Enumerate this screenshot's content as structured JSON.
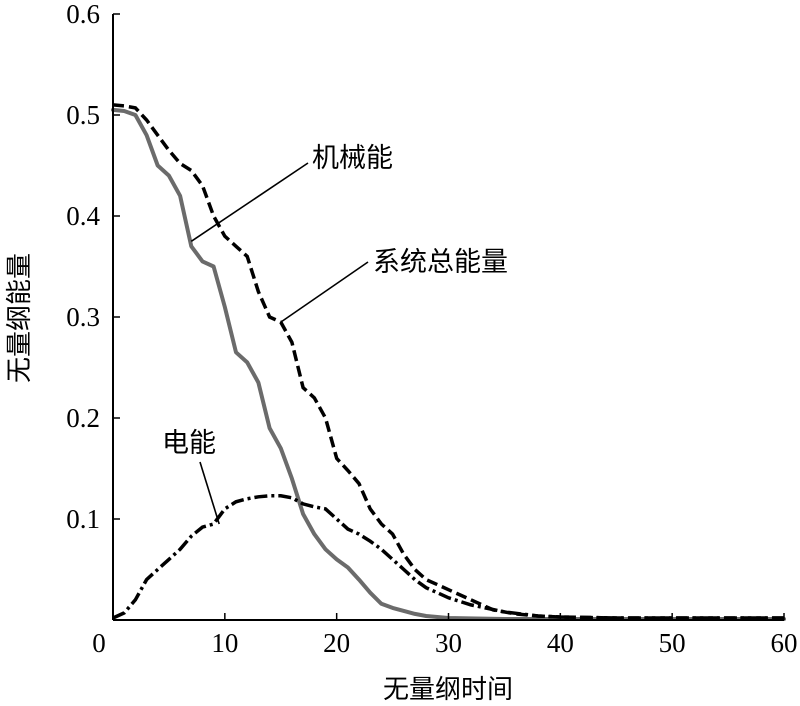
{
  "chart_data": {
    "type": "line",
    "xlabel": "无量纲时间",
    "ylabel": "无量纲能量",
    "xlim": [
      0,
      60
    ],
    "ylim": [
      0,
      0.6
    ],
    "x_ticks": [
      "0",
      "10",
      "20",
      "30",
      "40",
      "50",
      "60"
    ],
    "y_ticks": [
      "0.1",
      "0.2",
      "0.3",
      "0.4",
      "0.5",
      "0.6"
    ],
    "grid": false,
    "series": [
      {
        "name": "机械能",
        "style": "solid-gray",
        "color": "#6b6b6b",
        "x": [
          0,
          1,
          2,
          3,
          4,
          5,
          6,
          7,
          8,
          9,
          10,
          11,
          12,
          13,
          14,
          15,
          16,
          17,
          18,
          19,
          20,
          21,
          22,
          23,
          24,
          25,
          26,
          27,
          28,
          30,
          35,
          40,
          50,
          60
        ],
        "y": [
          0.505,
          0.504,
          0.5,
          0.48,
          0.45,
          0.44,
          0.42,
          0.37,
          0.355,
          0.35,
          0.31,
          0.265,
          0.255,
          0.235,
          0.19,
          0.17,
          0.14,
          0.105,
          0.085,
          0.07,
          0.06,
          0.052,
          0.04,
          0.027,
          0.016,
          0.012,
          0.009,
          0.006,
          0.004,
          0.002,
          0.001,
          0.001,
          0.001,
          0.001
        ]
      },
      {
        "name": "系统总能量",
        "style": "dashed",
        "color": "#000000",
        "x": [
          0,
          1,
          2,
          3,
          4,
          5,
          6,
          7,
          8,
          9,
          10,
          11,
          12,
          13,
          14,
          15,
          16,
          17,
          18,
          19,
          20,
          21,
          22,
          23,
          24,
          25,
          26,
          27,
          28,
          29,
          30,
          32,
          34,
          36,
          38,
          40,
          45,
          50,
          55,
          60
        ],
        "y": [
          0.51,
          0.509,
          0.507,
          0.495,
          0.48,
          0.465,
          0.452,
          0.445,
          0.43,
          0.4,
          0.38,
          0.37,
          0.36,
          0.325,
          0.3,
          0.295,
          0.275,
          0.23,
          0.22,
          0.2,
          0.16,
          0.148,
          0.135,
          0.11,
          0.095,
          0.085,
          0.065,
          0.05,
          0.04,
          0.035,
          0.03,
          0.02,
          0.01,
          0.006,
          0.004,
          0.003,
          0.002,
          0.002,
          0.002,
          0.002
        ]
      },
      {
        "name": "电能",
        "style": "dash-dot",
        "color": "#000000",
        "x": [
          0,
          1,
          2,
          3,
          4,
          5,
          6,
          7,
          8,
          9,
          10,
          11,
          12,
          13,
          14,
          15,
          16,
          17,
          18,
          19,
          20,
          21,
          22,
          23,
          24,
          25,
          26,
          27,
          28,
          29,
          30,
          32,
          35,
          38,
          40,
          45,
          50,
          55,
          60
        ],
        "y": [
          0.002,
          0.007,
          0.02,
          0.04,
          0.05,
          0.06,
          0.07,
          0.083,
          0.092,
          0.095,
          0.11,
          0.117,
          0.12,
          0.122,
          0.123,
          0.123,
          0.121,
          0.115,
          0.112,
          0.11,
          0.1,
          0.09,
          0.085,
          0.078,
          0.07,
          0.06,
          0.05,
          0.04,
          0.032,
          0.027,
          0.022,
          0.015,
          0.008,
          0.004,
          0.003,
          0.002,
          0.002,
          0.002,
          0.002
        ]
      }
    ],
    "annotations": [
      {
        "text": "机械能",
        "series": "机械能",
        "target": [
          7,
          0.375
        ]
      },
      {
        "text": "系统总能量",
        "series": "系统总能量",
        "target": [
          15,
          0.295
        ]
      },
      {
        "text": "电能",
        "series": "电能",
        "target": [
          9.5,
          0.095
        ]
      }
    ]
  }
}
